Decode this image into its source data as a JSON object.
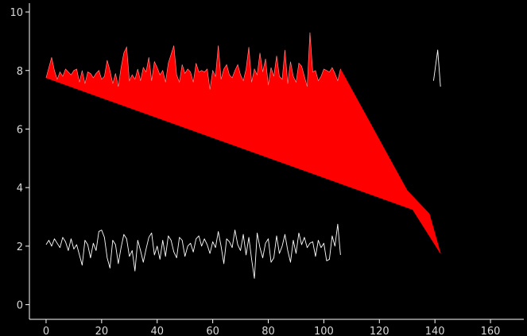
{
  "chart_data": {
    "type": "area",
    "title": "",
    "xlabel": "",
    "ylabel": "",
    "xlim": [
      -6,
      172
    ],
    "ylim": [
      -0.5,
      10.3
    ],
    "xticks": [
      0,
      20,
      40,
      60,
      80,
      100,
      120,
      140,
      160
    ],
    "yticks": [
      0,
      2,
      4,
      6,
      8,
      10
    ],
    "grid": false,
    "legend": "none",
    "colors": {
      "background": "#000000",
      "axes": "#ffffff",
      "tick_labels": "#d8d8d8",
      "fill": "#ff0000",
      "line": "#ffffff"
    },
    "series": [
      {
        "kind": "filled-area-outline",
        "x": [
          0,
          1,
          2,
          3,
          4,
          5,
          6,
          7,
          8,
          9,
          10,
          11,
          12,
          13,
          14,
          15,
          16,
          17,
          18,
          19,
          20,
          21,
          22,
          23,
          24,
          25,
          26,
          27,
          28,
          29,
          30,
          31,
          32,
          33,
          34,
          35,
          36,
          37,
          38,
          39,
          40,
          41,
          42,
          43,
          44,
          45,
          46,
          47,
          48,
          49,
          50,
          51,
          52,
          53,
          54,
          55,
          56,
          57,
          58,
          59,
          60,
          61,
          62,
          63,
          64,
          65,
          66,
          67,
          68,
          69,
          70,
          71,
          72,
          73,
          74,
          75,
          76,
          77,
          78,
          79,
          80,
          81,
          82,
          83,
          84,
          85,
          86,
          87,
          88,
          89,
          90,
          91,
          92,
          93,
          94,
          95,
          96,
          97,
          98,
          99,
          100,
          101,
          102,
          103,
          104,
          105,
          106
        ],
        "y": [
          7.75,
          8.1,
          8.45,
          8.0,
          7.7,
          7.95,
          7.8,
          8.05,
          7.95,
          7.85,
          8.0,
          8.05,
          7.6,
          8.0,
          7.55,
          7.95,
          7.9,
          7.75,
          7.9,
          8.0,
          7.7,
          7.8,
          8.35,
          8.0,
          7.55,
          7.9,
          7.45,
          8.1,
          8.6,
          8.8,
          7.65,
          7.85,
          7.7,
          8.05,
          7.65,
          8.1,
          7.95,
          8.45,
          7.65,
          8.3,
          8.1,
          7.85,
          8.0,
          7.6,
          8.25,
          8.55,
          8.85,
          7.85,
          7.6,
          8.2,
          7.9,
          8.05,
          7.95,
          7.6,
          8.25,
          7.95,
          8.0,
          7.95,
          8.05,
          7.35,
          8.0,
          7.8,
          8.85,
          7.7,
          8.05,
          8.2,
          7.85,
          7.75,
          8.0,
          8.2,
          7.85,
          7.65,
          8.05,
          8.8,
          7.6,
          8.05,
          7.85,
          8.6,
          7.95,
          8.4,
          7.5,
          8.1,
          7.8,
          8.5,
          7.8,
          7.7,
          8.7,
          7.55,
          8.3,
          7.8,
          7.6,
          8.25,
          8.15,
          7.8,
          7.45,
          9.3,
          7.95,
          8.0,
          7.65,
          7.8,
          8.05,
          8.0,
          7.95,
          8.1,
          7.9,
          7.65,
          8.05
        ]
      },
      {
        "kind": "filled-area-tail",
        "x": [
          106,
          130,
          138,
          142
        ],
        "y": [
          7.75,
          3.9,
          3.1,
          1.75
        ]
      },
      {
        "kind": "filled-area-baseline",
        "x": [
          0,
          132
        ],
        "y": [
          7.75,
          3.25
        ]
      },
      {
        "kind": "line",
        "x": [
          0,
          1,
          2,
          3,
          4,
          5,
          6,
          7,
          8,
          9,
          10,
          11,
          12,
          13,
          14,
          15,
          16,
          17,
          18,
          19,
          20,
          21,
          22,
          23,
          24,
          25,
          26,
          27,
          28,
          29,
          30,
          31,
          32,
          33,
          34,
          35,
          36,
          37,
          38,
          39,
          40,
          41,
          42,
          43,
          44,
          45,
          46,
          47,
          48,
          49,
          50,
          51,
          52,
          53,
          54,
          55,
          56,
          57,
          58,
          59,
          60,
          61,
          62,
          63,
          64,
          65,
          66,
          67,
          68,
          69,
          70,
          71,
          72,
          73,
          74,
          75,
          76,
          77,
          78,
          79,
          80,
          81,
          82,
          83,
          84,
          85,
          86,
          87,
          88,
          89,
          90,
          91,
          92,
          93,
          94,
          95,
          96,
          97,
          98,
          99,
          100,
          101,
          102,
          103,
          104,
          105,
          106
        ],
        "y": [
          2.05,
          2.2,
          2.0,
          2.25,
          2.1,
          1.95,
          2.3,
          2.15,
          1.85,
          2.25,
          1.9,
          2.05,
          1.7,
          1.35,
          2.2,
          2.05,
          1.6,
          2.1,
          1.85,
          2.5,
          2.55,
          2.3,
          1.6,
          1.25,
          2.2,
          2.05,
          1.4,
          1.95,
          2.4,
          2.25,
          1.65,
          1.85,
          1.15,
          2.2,
          1.85,
          1.45,
          1.9,
          2.3,
          2.45,
          1.7,
          2.0,
          1.55,
          2.2,
          1.65,
          2.35,
          2.2,
          1.8,
          1.6,
          2.3,
          2.2,
          1.65,
          2.0,
          2.1,
          1.8,
          2.25,
          2.35,
          2.0,
          2.25,
          2.05,
          1.75,
          2.15,
          1.95,
          2.5,
          2.0,
          1.4,
          2.25,
          2.15,
          1.95,
          2.55,
          2.05,
          1.85,
          2.4,
          1.7,
          2.3,
          1.55,
          0.9,
          2.45,
          1.95,
          1.6,
          2.1,
          2.25,
          1.45,
          1.6,
          2.35,
          1.75,
          2.0,
          2.4,
          1.85,
          1.45,
          2.2,
          1.75,
          2.45,
          2.05,
          2.3,
          1.95,
          2.1,
          2.15,
          1.65,
          2.2,
          1.95,
          2.1,
          1.5,
          1.55,
          2.35,
          2.0,
          2.75,
          1.7
        ]
      },
      {
        "kind": "line",
        "x": [
          139.5,
          141,
          142
        ],
        "y": [
          7.65,
          8.7,
          7.45
        ]
      }
    ]
  }
}
